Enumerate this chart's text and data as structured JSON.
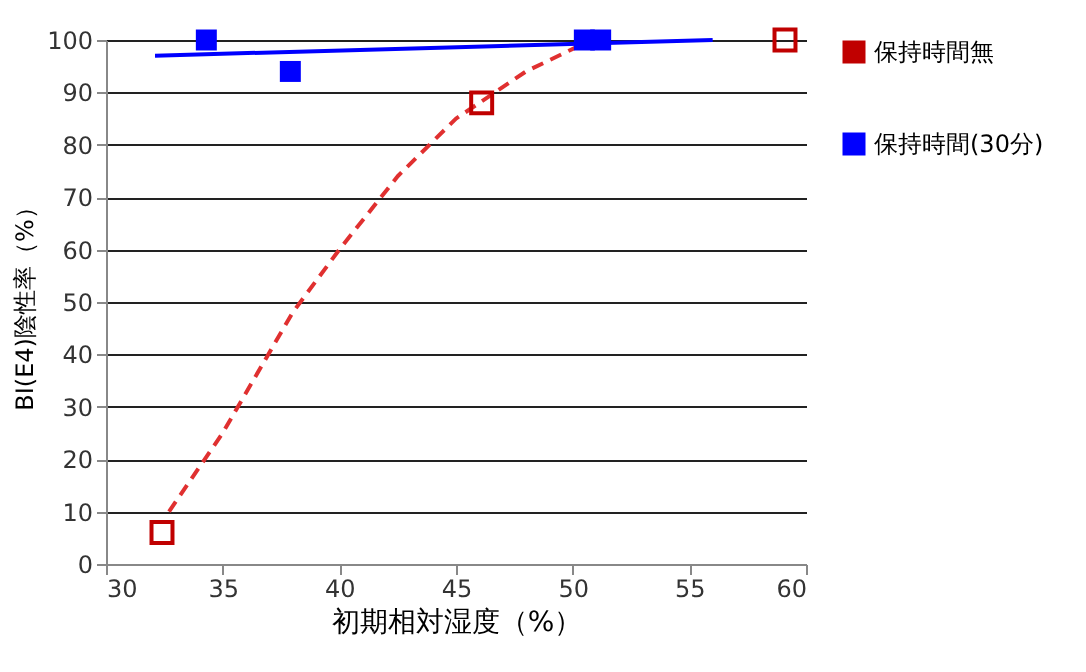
{
  "chart_data": {
    "type": "scatter",
    "xlabel": "初期相対湿度（%）",
    "ylabel": "BI(E4)陰性率（%）",
    "xlim": [
      30,
      60
    ],
    "xticks": [
      30,
      35,
      40,
      45,
      50,
      55,
      60
    ],
    "ylim": [
      0,
      100
    ],
    "yticks": [
      0,
      10,
      20,
      30,
      40,
      50,
      60,
      70,
      80,
      90,
      100
    ],
    "grid": "y",
    "legend": "right",
    "series": [
      {
        "name": "保持時間無",
        "color": "#c00000",
        "marker": "square",
        "x": [
          32.4,
          46.1,
          59.1
        ],
        "values": [
          6,
          88,
          100
        ]
      },
      {
        "name": "保持時間(30分)",
        "color": "#0000ff",
        "marker": "square",
        "x": [
          34.3,
          37.9,
          50.5,
          51.2
        ],
        "values": [
          100,
          94,
          100,
          100
        ]
      },
      {
        "type": "line",
        "marker": "none",
        "line_style": "dashed",
        "color": "#e03030",
        "x": [
          32.7,
          35,
          38,
          40,
          42.5,
          45,
          48,
          50.8
        ],
        "values": [
          10,
          25,
          48,
          60,
          74,
          85,
          94,
          100
        ]
      },
      {
        "type": "line",
        "marker": "none",
        "line_style": "solid",
        "color": "#0000ff",
        "x": [
          32.1,
          56
        ],
        "values": [
          97,
          100
        ]
      }
    ]
  }
}
